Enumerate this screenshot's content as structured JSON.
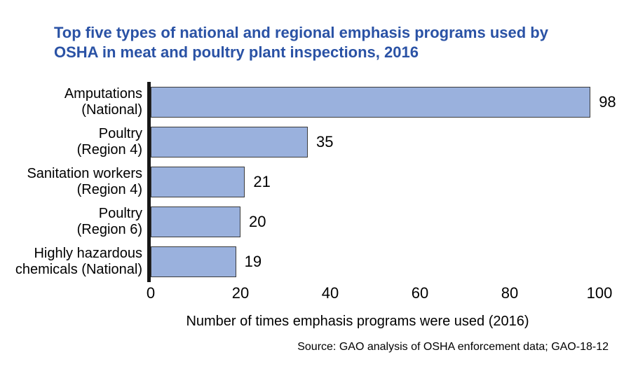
{
  "title": {
    "line1": "Top five types of national and regional emphasis programs used by",
    "line2": "OSHA in meat and poultry plant inspections, 2016",
    "color": "#2a52a5"
  },
  "chart_data": {
    "type": "bar",
    "orientation": "horizontal",
    "title": "Top five types of national and regional emphasis programs used by OSHA in meat and poultry plant inspections, 2016",
    "categories": [
      "Amputations (National)",
      "Poultry (Region 4)",
      "Sanitation workers (Region 4)",
      "Poultry (Region 6)",
      "Highly hazardous chemicals (National)"
    ],
    "values": [
      98,
      35,
      21,
      20,
      19
    ],
    "rows": [
      {
        "label_line1": "Amputations",
        "label_line2": "(National)",
        "value": 98
      },
      {
        "label_line1": "Poultry",
        "label_line2": "(Region 4)",
        "value": 35
      },
      {
        "label_line1": "Sanitation workers",
        "label_line2": "(Region 4)",
        "value": 21
      },
      {
        "label_line1": "Poultry",
        "label_line2": "(Region 6)",
        "value": 20
      },
      {
        "label_line1": "Highly hazardous",
        "label_line2": "chemicals (National)",
        "value": 19
      }
    ],
    "x_ticks": [
      0,
      20,
      40,
      60,
      80,
      100
    ],
    "xlim": [
      0,
      100
    ],
    "xlabel": "Number of times emphasis programs were used (2016)",
    "grid": false,
    "legend": null,
    "bar_fill": "#9ab1dd",
    "bar_border": "#3b3b3b",
    "axis_color": "#161616"
  },
  "source": "Source: GAO analysis of OSHA enforcement data; GAO-18-12"
}
